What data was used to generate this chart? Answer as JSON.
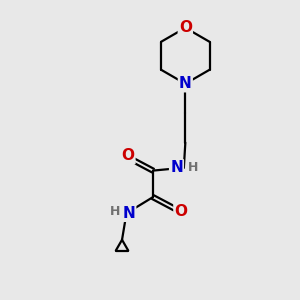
{
  "background_color": "#e8e8e8",
  "atom_colors": {
    "N": "#0000cc",
    "O": "#cc0000",
    "H": "#707070"
  },
  "bond_color": "#000000",
  "bond_width": 1.6,
  "font_size_atoms": 11,
  "font_size_H": 9,
  "figsize": [
    3.0,
    3.0
  ],
  "dpi": 100
}
